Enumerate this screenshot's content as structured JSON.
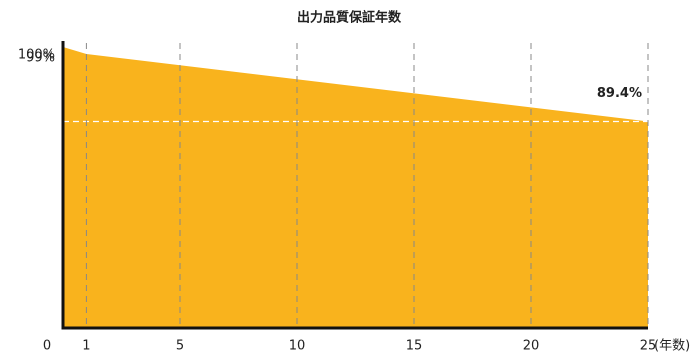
{
  "chart_data": {
    "type": "area",
    "title": "出力品質保証年数",
    "x": [
      0,
      1,
      25
    ],
    "values": [
      100,
      99,
      89.4
    ],
    "value_labels": [
      null,
      null,
      "89.4%"
    ],
    "color": "#f9b31d",
    "label_color": "#f08a2c",
    "xlim": [
      0,
      25
    ],
    "xticks": [
      0,
      1,
      5,
      10,
      15,
      20,
      25
    ],
    "xlabel": "(年数)",
    "ylim": [
      60,
      100
    ],
    "yticks": [
      {
        "value": 100,
        "label": "100%"
      },
      {
        "value": 99,
        "label": "99%"
      }
    ],
    "grid": true
  }
}
